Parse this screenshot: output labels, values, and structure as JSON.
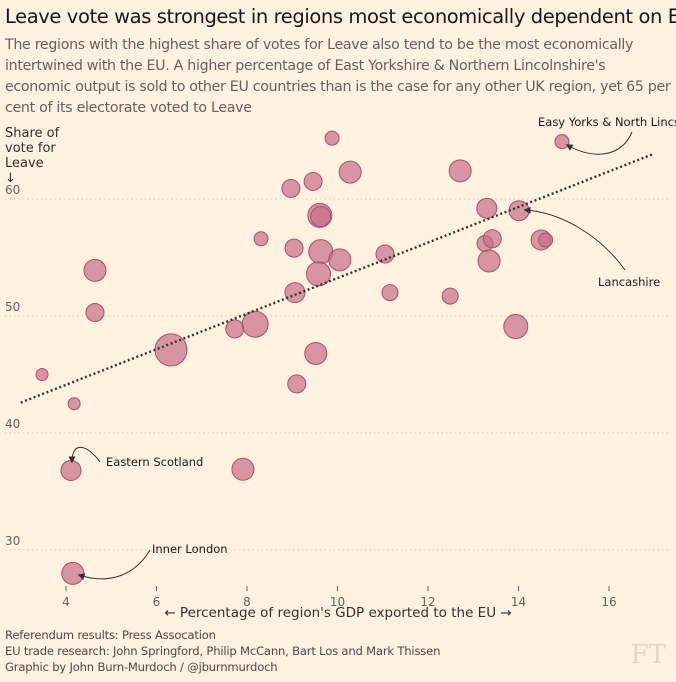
{
  "title": "Leave vote was strongest in regions most economically dependent on EU",
  "subtitle": "The regions with the highest share of votes for Leave also tend to be the most economically intertwined with the EU. A higher percentage of East Yorkshire & Northern Lincolnshire's economic output is sold to other EU countries than is the case for any other UK region, yet 65 per cent of its electorate voted to Leave",
  "footer": [
    "Referendum results: Press Assocation",
    "EU trade research: John Springford, Philip McCann, Bart Los and Mark Thissen",
    "Graphic by John Burn-Murdoch / @jburnmurdoch"
  ],
  "logo": "FT",
  "colors": {
    "background": "#fff1e0",
    "bubble_fill": "#c66d88",
    "bubble_stroke": "#a8506b",
    "trend": "#33302e"
  },
  "chart_data": {
    "type": "scatter",
    "xlabel": "← Percentage of region's GDP exported to the EU →",
    "ylabel": "Share of\nvote for\nLeave\n↓",
    "xlim": [
      3.4,
      17.3
    ],
    "ylim": [
      26,
      66
    ],
    "x_ticks": [
      4,
      6,
      8,
      10,
      12,
      14,
      16
    ],
    "y_ticks": [
      30,
      40,
      50,
      60
    ],
    "grid": "horizontal dotted",
    "trend_line": {
      "x": [
        3.0,
        16.95
      ],
      "y": [
        42.6,
        63.8
      ]
    },
    "points": [
      {
        "x": 3.47,
        "y": 45.0,
        "size": 6
      },
      {
        "x": 4.18,
        "y": 42.5,
        "size": 6
      },
      {
        "x": 4.64,
        "y": 53.9,
        "size": 11
      },
      {
        "x": 4.64,
        "y": 50.3,
        "size": 9
      },
      {
        "x": 4.11,
        "y": 36.8,
        "size": 10,
        "label": "Eastern Scotland"
      },
      {
        "x": 4.15,
        "y": 28.0,
        "size": 11,
        "label": "Inner London"
      },
      {
        "x": 6.32,
        "y": 47.1,
        "size": 16
      },
      {
        "x": 7.73,
        "y": 48.9,
        "size": 9
      },
      {
        "x": 8.18,
        "y": 49.3,
        "size": 13
      },
      {
        "x": 8.31,
        "y": 56.6,
        "size": 7
      },
      {
        "x": 7.91,
        "y": 36.9,
        "size": 11
      },
      {
        "x": 8.97,
        "y": 60.9,
        "size": 9
      },
      {
        "x": 9.04,
        "y": 55.8,
        "size": 9
      },
      {
        "x": 9.06,
        "y": 52.0,
        "size": 10
      },
      {
        "x": 9.1,
        "y": 44.2,
        "size": 9
      },
      {
        "x": 9.46,
        "y": 61.5,
        "size": 9
      },
      {
        "x": 9.61,
        "y": 58.6,
        "size": 12
      },
      {
        "x": 9.63,
        "y": 58.5,
        "size": 10
      },
      {
        "x": 9.63,
        "y": 55.5,
        "size": 12
      },
      {
        "x": 9.58,
        "y": 53.6,
        "size": 12
      },
      {
        "x": 9.52,
        "y": 46.8,
        "size": 11
      },
      {
        "x": 9.88,
        "y": 65.2,
        "size": 7
      },
      {
        "x": 10.05,
        "y": 54.8,
        "size": 11
      },
      {
        "x": 10.28,
        "y": 62.3,
        "size": 11
      },
      {
        "x": 11.05,
        "y": 55.3,
        "size": 9
      },
      {
        "x": 11.16,
        "y": 52.0,
        "size": 8
      },
      {
        "x": 12.49,
        "y": 51.7,
        "size": 8
      },
      {
        "x": 12.71,
        "y": 62.4,
        "size": 11
      },
      {
        "x": 13.3,
        "y": 59.2,
        "size": 10
      },
      {
        "x": 13.26,
        "y": 56.2,
        "size": 8
      },
      {
        "x": 13.42,
        "y": 56.6,
        "size": 9
      },
      {
        "x": 13.35,
        "y": 54.7,
        "size": 11
      },
      {
        "x": 13.94,
        "y": 49.1,
        "size": 12
      },
      {
        "x": 14.01,
        "y": 59.0,
        "size": 10,
        "label": "Lancashire"
      },
      {
        "x": 14.5,
        "y": 56.5,
        "size": 10
      },
      {
        "x": 14.6,
        "y": 56.5,
        "size": 7
      },
      {
        "x": 14.96,
        "y": 64.9,
        "size": 7,
        "label": "Easy Yorks & North Lincs"
      }
    ]
  }
}
